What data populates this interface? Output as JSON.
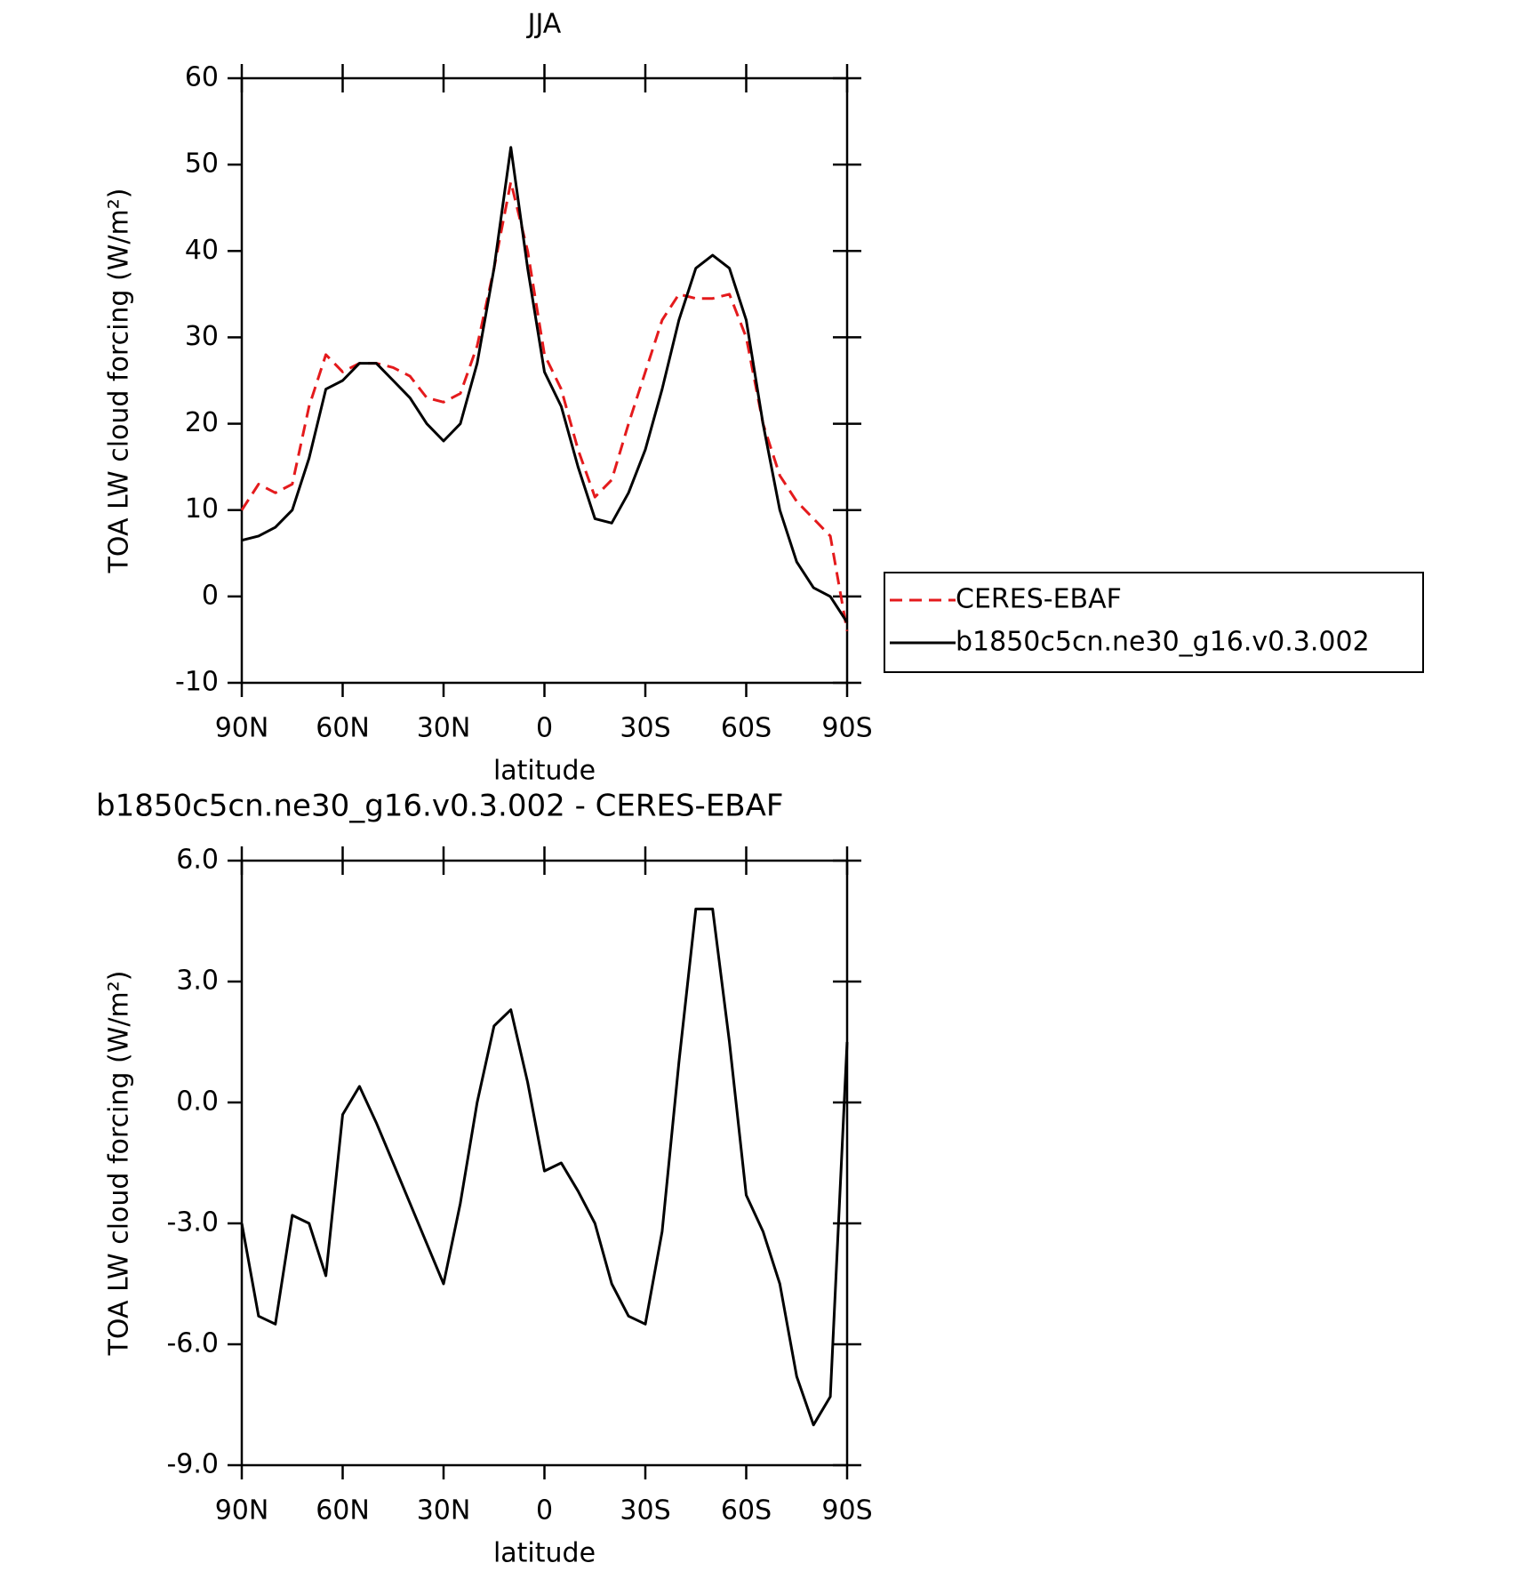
{
  "chart_data": [
    {
      "type": "line",
      "title": "JJA",
      "x_label": "latitude",
      "y_label": "TOA LW cloud forcing (W/m²)",
      "x": [
        90,
        85,
        80,
        75,
        70,
        65,
        60,
        55,
        50,
        45,
        40,
        35,
        30,
        25,
        20,
        15,
        10,
        5,
        0,
        -5,
        -10,
        -15,
        -20,
        -25,
        -30,
        -35,
        -40,
        -45,
        -50,
        -55,
        -60,
        -65,
        -70,
        -75,
        -80,
        -85,
        -90
      ],
      "xlim": [
        90,
        -90
      ],
      "xticks": [
        {
          "value": 90,
          "label": "90N"
        },
        {
          "value": 60,
          "label": "60N"
        },
        {
          "value": 30,
          "label": "30N"
        },
        0,
        {
          "value": -30,
          "label": "30S"
        },
        {
          "value": -60,
          "label": "60S"
        },
        {
          "value": -90,
          "label": "90S"
        }
      ],
      "ylim": [
        -10,
        60
      ],
      "yticks": [
        -10,
        0,
        10,
        20,
        30,
        40,
        50,
        60
      ],
      "legend": "right",
      "series": [
        {
          "name": "CERES-EBAF",
          "color": "#e41a1c",
          "dash": true,
          "values": [
            10,
            13,
            12,
            13,
            22,
            28,
            26,
            27,
            27,
            26.5,
            25.5,
            23,
            22.5,
            23.5,
            29,
            38,
            48,
            40,
            28,
            24,
            17,
            11.5,
            13.5,
            20,
            26,
            32,
            35,
            34.5,
            34.5,
            35,
            30,
            20,
            14,
            11,
            9,
            7,
            -4
          ]
        },
        {
          "name": "b1850c5cn.ne30_g16.v0.3.002",
          "color": "#000000",
          "dash": false,
          "values": [
            6.5,
            7,
            8,
            10,
            16,
            24,
            25,
            27,
            27,
            25,
            23,
            20,
            18,
            20,
            27,
            38,
            52,
            38,
            26,
            22,
            15,
            9,
            8.5,
            12,
            17,
            24,
            32,
            38,
            39.5,
            38,
            32,
            20,
            10,
            4,
            1,
            0,
            -3
          ]
        }
      ]
    },
    {
      "type": "line",
      "title": "b1850c5cn.ne30_g16.v0.3.002 - CERES-EBAF",
      "x_label": "latitude",
      "y_label": "TOA LW cloud forcing (W/m²)",
      "x": [
        90,
        85,
        80,
        75,
        70,
        65,
        60,
        55,
        50,
        45,
        40,
        35,
        30,
        25,
        20,
        15,
        10,
        5,
        0,
        -5,
        -10,
        -15,
        -20,
        -25,
        -30,
        -35,
        -40,
        -45,
        -50,
        -55,
        -60,
        -65,
        -70,
        -75,
        -80,
        -85,
        -90
      ],
      "xlim": [
        90,
        -90
      ],
      "xticks": [
        {
          "value": 90,
          "label": "90N"
        },
        {
          "value": 60,
          "label": "60N"
        },
        {
          "value": 30,
          "label": "30N"
        },
        0,
        {
          "value": -30,
          "label": "30S"
        },
        {
          "value": -60,
          "label": "60S"
        },
        {
          "value": -90,
          "label": "90S"
        }
      ],
      "ylim": [
        -9,
        6
      ],
      "yticks": [
        {
          "value": -9,
          "label": "-9.0"
        },
        {
          "value": -6,
          "label": "-6.0"
        },
        {
          "value": -3,
          "label": "-3.0"
        },
        {
          "value": 0,
          "label": "0.0"
        },
        {
          "value": 3,
          "label": "3.0"
        },
        {
          "value": 6,
          "label": "6.0"
        }
      ],
      "series": [
        {
          "color": "#000000",
          "dash": false,
          "values": [
            -3,
            -5.3,
            -5.5,
            -2.8,
            -3,
            -4.3,
            -0.3,
            0.4,
            -0.5,
            -1.5,
            -2.5,
            -3.5,
            -4.5,
            -2.5,
            0,
            1.9,
            2.3,
            0.5,
            -1.7,
            -1.5,
            -2.2,
            -3,
            -4.5,
            -5.3,
            -5.5,
            -3.2,
            1,
            4.8,
            4.8,
            1.5,
            -2.3,
            -3.2,
            -4.5,
            -6.8,
            -8,
            -7.3,
            1.5
          ]
        }
      ]
    }
  ]
}
